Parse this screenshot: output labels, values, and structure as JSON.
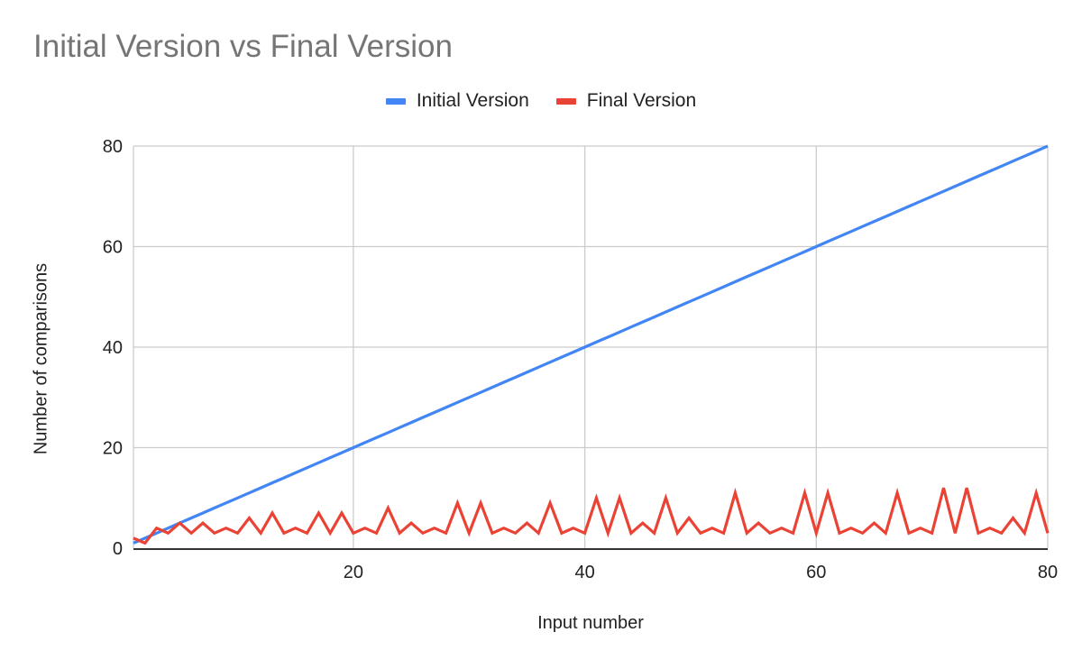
{
  "chart_data": {
    "type": "line",
    "title": "Initial Version vs Final Version",
    "xlabel": "Input number",
    "ylabel": "Number of comparisons",
    "xlim": [
      1,
      80
    ],
    "ylim": [
      0,
      80
    ],
    "x_ticks": [
      20,
      40,
      60,
      80
    ],
    "y_ticks": [
      0,
      20,
      40,
      60,
      80
    ],
    "grid": true,
    "legend_position": "top",
    "x": [
      1,
      2,
      3,
      4,
      5,
      6,
      7,
      8,
      9,
      10,
      11,
      12,
      13,
      14,
      15,
      16,
      17,
      18,
      19,
      20,
      21,
      22,
      23,
      24,
      25,
      26,
      27,
      28,
      29,
      30,
      31,
      32,
      33,
      34,
      35,
      36,
      37,
      38,
      39,
      40,
      41,
      42,
      43,
      44,
      45,
      46,
      47,
      48,
      49,
      50,
      51,
      52,
      53,
      54,
      55,
      56,
      57,
      58,
      59,
      60,
      61,
      62,
      63,
      64,
      65,
      66,
      67,
      68,
      69,
      70,
      71,
      72,
      73,
      74,
      75,
      76,
      77,
      78,
      79,
      80
    ],
    "series": [
      {
        "name": "Initial Version",
        "color": "#4285f4",
        "values": [
          1,
          2,
          3,
          4,
          5,
          6,
          7,
          8,
          9,
          10,
          11,
          12,
          13,
          14,
          15,
          16,
          17,
          18,
          19,
          20,
          21,
          22,
          23,
          24,
          25,
          26,
          27,
          28,
          29,
          30,
          31,
          32,
          33,
          34,
          35,
          36,
          37,
          38,
          39,
          40,
          41,
          42,
          43,
          44,
          45,
          46,
          47,
          48,
          49,
          50,
          51,
          52,
          53,
          54,
          55,
          56,
          57,
          58,
          59,
          60,
          61,
          62,
          63,
          64,
          65,
          66,
          67,
          68,
          69,
          70,
          71,
          72,
          73,
          74,
          75,
          76,
          77,
          78,
          79,
          80
        ]
      },
      {
        "name": "Final Version",
        "color": "#ea4335",
        "values": [
          2,
          1,
          4,
          3,
          5,
          3,
          5,
          3,
          4,
          3,
          6,
          3,
          7,
          3,
          4,
          3,
          7,
          3,
          7,
          3,
          4,
          3,
          8,
          3,
          5,
          3,
          4,
          3,
          9,
          3,
          9,
          3,
          4,
          3,
          5,
          3,
          9,
          3,
          4,
          3,
          10,
          3,
          10,
          3,
          5,
          3,
          10,
          3,
          6,
          3,
          4,
          3,
          11,
          3,
          5,
          3,
          4,
          3,
          11,
          3,
          11,
          3,
          4,
          3,
          5,
          3,
          11,
          3,
          4,
          3,
          12,
          3,
          12,
          3,
          4,
          3,
          6,
          3,
          11,
          3
        ]
      }
    ]
  },
  "legend": {
    "items": [
      {
        "label": "Initial Version",
        "color": "#4285f4"
      },
      {
        "label": "Final Version",
        "color": "#ea4335"
      }
    ]
  }
}
